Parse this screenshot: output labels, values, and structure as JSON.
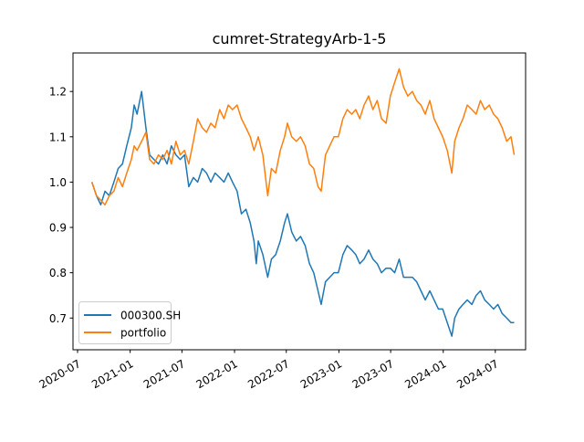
{
  "chart_data": {
    "type": "line",
    "title": "cumret-StrategyArb-1-5",
    "xlabel": "",
    "ylabel": "",
    "x_type": "date",
    "xlim": [
      "2020-06-15",
      "2024-10-15"
    ],
    "ylim": [
      0.63,
      1.285
    ],
    "x_ticks": [
      {
        "date": "2020-07-01",
        "label": "2020-07"
      },
      {
        "date": "2021-01-01",
        "label": "2021-01"
      },
      {
        "date": "2021-07-01",
        "label": "2021-07"
      },
      {
        "date": "2022-01-01",
        "label": "2022-01"
      },
      {
        "date": "2022-07-01",
        "label": "2022-07"
      },
      {
        "date": "2023-01-01",
        "label": "2023-01"
      },
      {
        "date": "2023-07-01",
        "label": "2023-07"
      },
      {
        "date": "2024-01-01",
        "label": "2024-01"
      },
      {
        "date": "2024-07-01",
        "label": "2024-07"
      }
    ],
    "y_ticks": [
      {
        "value": 0.7,
        "label": "0.7"
      },
      {
        "value": 0.8,
        "label": "0.8"
      },
      {
        "value": 0.9,
        "label": "0.9"
      },
      {
        "value": 1.0,
        "label": "1.0"
      },
      {
        "value": 1.1,
        "label": "1.1"
      },
      {
        "value": 1.2,
        "label": "1.2"
      }
    ],
    "grid": false,
    "legend_position": "lower-left",
    "series": [
      {
        "name": "000300.SH",
        "color": "#1f77b4",
        "points": [
          [
            "2020-08-20",
            1.0
          ],
          [
            "2020-09-05",
            0.97
          ],
          [
            "2020-09-20",
            0.95
          ],
          [
            "2020-10-05",
            0.98
          ],
          [
            "2020-10-20",
            0.97
          ],
          [
            "2020-11-05",
            1.0
          ],
          [
            "2020-11-20",
            1.03
          ],
          [
            "2020-12-05",
            1.04
          ],
          [
            "2020-12-20",
            1.08
          ],
          [
            "2021-01-05",
            1.12
          ],
          [
            "2021-01-15",
            1.17
          ],
          [
            "2021-01-25",
            1.15
          ],
          [
            "2021-02-10",
            1.2
          ],
          [
            "2021-02-25",
            1.12
          ],
          [
            "2021-03-10",
            1.06
          ],
          [
            "2021-03-25",
            1.05
          ],
          [
            "2021-04-10",
            1.04
          ],
          [
            "2021-04-25",
            1.06
          ],
          [
            "2021-05-10",
            1.04
          ],
          [
            "2021-05-25",
            1.08
          ],
          [
            "2021-06-10",
            1.06
          ],
          [
            "2021-06-25",
            1.05
          ],
          [
            "2021-07-10",
            1.06
          ],
          [
            "2021-07-25",
            0.99
          ],
          [
            "2021-08-10",
            1.01
          ],
          [
            "2021-08-25",
            1.0
          ],
          [
            "2021-09-10",
            1.03
          ],
          [
            "2021-09-25",
            1.02
          ],
          [
            "2021-10-10",
            1.0
          ],
          [
            "2021-10-25",
            1.02
          ],
          [
            "2021-11-10",
            1.01
          ],
          [
            "2021-11-25",
            1.0
          ],
          [
            "2021-12-10",
            1.02
          ],
          [
            "2021-12-25",
            1.0
          ],
          [
            "2022-01-10",
            0.98
          ],
          [
            "2022-01-25",
            0.93
          ],
          [
            "2022-02-10",
            0.94
          ],
          [
            "2022-02-25",
            0.91
          ],
          [
            "2022-03-10",
            0.87
          ],
          [
            "2022-03-18",
            0.82
          ],
          [
            "2022-03-25",
            0.87
          ],
          [
            "2022-04-10",
            0.84
          ],
          [
            "2022-04-27",
            0.79
          ],
          [
            "2022-05-10",
            0.83
          ],
          [
            "2022-05-25",
            0.84
          ],
          [
            "2022-06-10",
            0.87
          ],
          [
            "2022-06-25",
            0.91
          ],
          [
            "2022-07-05",
            0.93
          ],
          [
            "2022-07-20",
            0.89
          ],
          [
            "2022-08-05",
            0.87
          ],
          [
            "2022-08-20",
            0.88
          ],
          [
            "2022-09-05",
            0.86
          ],
          [
            "2022-09-20",
            0.82
          ],
          [
            "2022-10-05",
            0.8
          ],
          [
            "2022-10-20",
            0.76
          ],
          [
            "2022-10-31",
            0.73
          ],
          [
            "2022-11-15",
            0.78
          ],
          [
            "2022-11-30",
            0.79
          ],
          [
            "2022-12-15",
            0.8
          ],
          [
            "2022-12-30",
            0.8
          ],
          [
            "2023-01-15",
            0.84
          ],
          [
            "2023-01-30",
            0.86
          ],
          [
            "2023-02-15",
            0.85
          ],
          [
            "2023-03-01",
            0.84
          ],
          [
            "2023-03-15",
            0.82
          ],
          [
            "2023-03-30",
            0.83
          ],
          [
            "2023-04-15",
            0.85
          ],
          [
            "2023-04-30",
            0.83
          ],
          [
            "2023-05-15",
            0.82
          ],
          [
            "2023-05-30",
            0.8
          ],
          [
            "2023-06-15",
            0.81
          ],
          [
            "2023-06-30",
            0.81
          ],
          [
            "2023-07-15",
            0.8
          ],
          [
            "2023-07-31",
            0.83
          ],
          [
            "2023-08-15",
            0.79
          ],
          [
            "2023-08-30",
            0.79
          ],
          [
            "2023-09-15",
            0.79
          ],
          [
            "2023-09-30",
            0.78
          ],
          [
            "2023-10-15",
            0.76
          ],
          [
            "2023-10-30",
            0.74
          ],
          [
            "2023-11-15",
            0.76
          ],
          [
            "2023-11-30",
            0.74
          ],
          [
            "2023-12-15",
            0.72
          ],
          [
            "2023-12-30",
            0.72
          ],
          [
            "2024-01-15",
            0.69
          ],
          [
            "2024-01-31",
            0.66
          ],
          [
            "2024-02-10",
            0.7
          ],
          [
            "2024-02-25",
            0.72
          ],
          [
            "2024-03-10",
            0.73
          ],
          [
            "2024-03-25",
            0.74
          ],
          [
            "2024-04-10",
            0.73
          ],
          [
            "2024-04-25",
            0.75
          ],
          [
            "2024-05-10",
            0.76
          ],
          [
            "2024-05-25",
            0.74
          ],
          [
            "2024-06-10",
            0.73
          ],
          [
            "2024-06-25",
            0.72
          ],
          [
            "2024-07-10",
            0.73
          ],
          [
            "2024-07-25",
            0.71
          ],
          [
            "2024-08-10",
            0.7
          ],
          [
            "2024-08-25",
            0.69
          ],
          [
            "2024-09-05",
            0.69
          ]
        ]
      },
      {
        "name": "portfolio",
        "color": "#ff7f0e",
        "points": [
          [
            "2020-08-20",
            1.0
          ],
          [
            "2020-09-05",
            0.97
          ],
          [
            "2020-09-20",
            0.96
          ],
          [
            "2020-10-05",
            0.95
          ],
          [
            "2020-10-20",
            0.97
          ],
          [
            "2020-11-05",
            0.98
          ],
          [
            "2020-11-20",
            1.01
          ],
          [
            "2020-12-05",
            0.99
          ],
          [
            "2020-12-20",
            1.02
          ],
          [
            "2021-01-05",
            1.05
          ],
          [
            "2021-01-15",
            1.08
          ],
          [
            "2021-01-25",
            1.07
          ],
          [
            "2021-02-10",
            1.09
          ],
          [
            "2021-02-25",
            1.11
          ],
          [
            "2021-03-10",
            1.05
          ],
          [
            "2021-03-25",
            1.04
          ],
          [
            "2021-04-10",
            1.06
          ],
          [
            "2021-04-25",
            1.05
          ],
          [
            "2021-05-10",
            1.07
          ],
          [
            "2021-05-25",
            1.04
          ],
          [
            "2021-06-10",
            1.09
          ],
          [
            "2021-06-25",
            1.06
          ],
          [
            "2021-07-10",
            1.07
          ],
          [
            "2021-07-25",
            1.04
          ],
          [
            "2021-08-10",
            1.09
          ],
          [
            "2021-08-25",
            1.14
          ],
          [
            "2021-09-10",
            1.12
          ],
          [
            "2021-09-25",
            1.11
          ],
          [
            "2021-10-10",
            1.13
          ],
          [
            "2021-10-25",
            1.12
          ],
          [
            "2021-11-10",
            1.16
          ],
          [
            "2021-11-25",
            1.14
          ],
          [
            "2021-12-10",
            1.17
          ],
          [
            "2021-12-25",
            1.16
          ],
          [
            "2022-01-10",
            1.17
          ],
          [
            "2022-01-25",
            1.14
          ],
          [
            "2022-02-10",
            1.12
          ],
          [
            "2022-02-25",
            1.1
          ],
          [
            "2022-03-10",
            1.07
          ],
          [
            "2022-03-25",
            1.1
          ],
          [
            "2022-04-10",
            1.06
          ],
          [
            "2022-04-27",
            0.97
          ],
          [
            "2022-05-10",
            1.03
          ],
          [
            "2022-05-25",
            1.02
          ],
          [
            "2022-06-10",
            1.07
          ],
          [
            "2022-06-25",
            1.1
          ],
          [
            "2022-07-05",
            1.13
          ],
          [
            "2022-07-20",
            1.1
          ],
          [
            "2022-08-05",
            1.09
          ],
          [
            "2022-08-20",
            1.1
          ],
          [
            "2022-09-05",
            1.08
          ],
          [
            "2022-09-20",
            1.04
          ],
          [
            "2022-10-05",
            1.03
          ],
          [
            "2022-10-20",
            0.99
          ],
          [
            "2022-10-31",
            0.98
          ],
          [
            "2022-11-15",
            1.06
          ],
          [
            "2022-11-30",
            1.08
          ],
          [
            "2022-12-15",
            1.1
          ],
          [
            "2022-12-30",
            1.1
          ],
          [
            "2023-01-15",
            1.14
          ],
          [
            "2023-01-30",
            1.16
          ],
          [
            "2023-02-15",
            1.15
          ],
          [
            "2023-03-01",
            1.16
          ],
          [
            "2023-03-15",
            1.14
          ],
          [
            "2023-03-30",
            1.17
          ],
          [
            "2023-04-15",
            1.19
          ],
          [
            "2023-04-30",
            1.16
          ],
          [
            "2023-05-15",
            1.18
          ],
          [
            "2023-05-30",
            1.14
          ],
          [
            "2023-06-15",
            1.13
          ],
          [
            "2023-06-30",
            1.19
          ],
          [
            "2023-07-15",
            1.22
          ],
          [
            "2023-07-31",
            1.25
          ],
          [
            "2023-08-15",
            1.21
          ],
          [
            "2023-08-30",
            1.19
          ],
          [
            "2023-09-15",
            1.2
          ],
          [
            "2023-09-30",
            1.18
          ],
          [
            "2023-10-15",
            1.17
          ],
          [
            "2023-10-30",
            1.15
          ],
          [
            "2023-11-15",
            1.18
          ],
          [
            "2023-11-30",
            1.14
          ],
          [
            "2023-12-15",
            1.12
          ],
          [
            "2023-12-30",
            1.1
          ],
          [
            "2024-01-15",
            1.07
          ],
          [
            "2024-01-31",
            1.02
          ],
          [
            "2024-02-10",
            1.09
          ],
          [
            "2024-02-25",
            1.12
          ],
          [
            "2024-03-10",
            1.14
          ],
          [
            "2024-03-25",
            1.17
          ],
          [
            "2024-04-10",
            1.16
          ],
          [
            "2024-04-25",
            1.15
          ],
          [
            "2024-05-10",
            1.18
          ],
          [
            "2024-05-25",
            1.16
          ],
          [
            "2024-06-10",
            1.17
          ],
          [
            "2024-06-25",
            1.15
          ],
          [
            "2024-07-10",
            1.14
          ],
          [
            "2024-07-25",
            1.12
          ],
          [
            "2024-08-10",
            1.09
          ],
          [
            "2024-08-25",
            1.1
          ],
          [
            "2024-09-05",
            1.06
          ]
        ]
      }
    ]
  }
}
